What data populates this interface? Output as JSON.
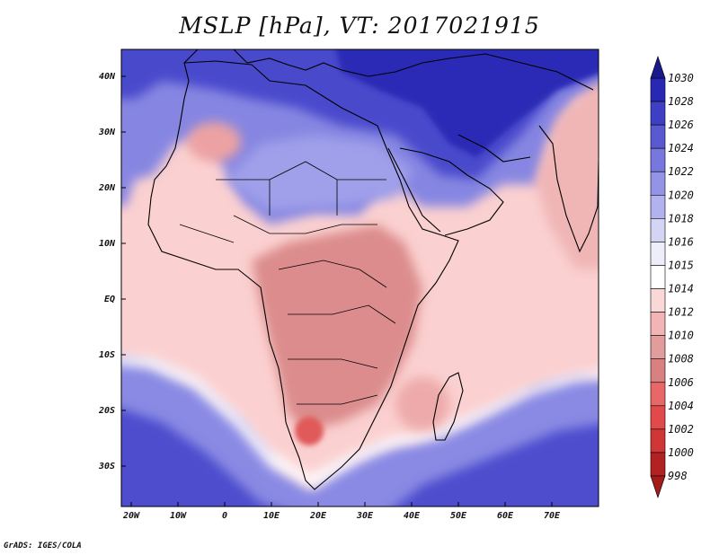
{
  "title": "MSLP [hPa], VT: 2017021915",
  "credit": "GrADS: IGES/COLA",
  "map": {
    "region": "Africa and Middle East",
    "lon_range": [
      -22,
      80
    ],
    "lat_range": [
      -37,
      45
    ],
    "lat_ticks": [
      "40N",
      "30N",
      "20N",
      "10N",
      "EQ",
      "10S",
      "20S",
      "30S"
    ],
    "lon_ticks": [
      "20W",
      "10W",
      "0",
      "10E",
      "20E",
      "30E",
      "40E",
      "50E",
      "60E",
      "70E"
    ]
  },
  "colorbar": {
    "levels": [
      "998",
      "1000",
      "1002",
      "1004",
      "1006",
      "1008",
      "1010",
      "1012",
      "1014",
      "1015",
      "1016",
      "1018",
      "1020",
      "1022",
      "1024",
      "1026",
      "1028",
      "1030"
    ],
    "colors": [
      "#b22222",
      "#d13636",
      "#e04a4a",
      "#e86767",
      "#d98080",
      "#e29c9c",
      "#f2b4b4",
      "#fbd8d8",
      "#ffffff",
      "#eeeefa",
      "#d4d4f5",
      "#b2b2ee",
      "#9494e6",
      "#7777de",
      "#5959d2",
      "#3f3fc6",
      "#2828b3",
      "#16169a"
    ],
    "lowest_color": "#a31b1b",
    "highest_color": "#1a1a8c"
  },
  "field_colors": {
    "high_deep": "#2a2ab8",
    "high": "#5e5ed8",
    "high_mid": "#8a8ae4",
    "high_light": "#b4b4ee",
    "neutral": "#fdf2f2",
    "low_light": "#f8cccc",
    "low": "#f0b0b0",
    "low_mid": "#e49898",
    "low_deep": "#d88080",
    "low_core": "#e05050"
  }
}
